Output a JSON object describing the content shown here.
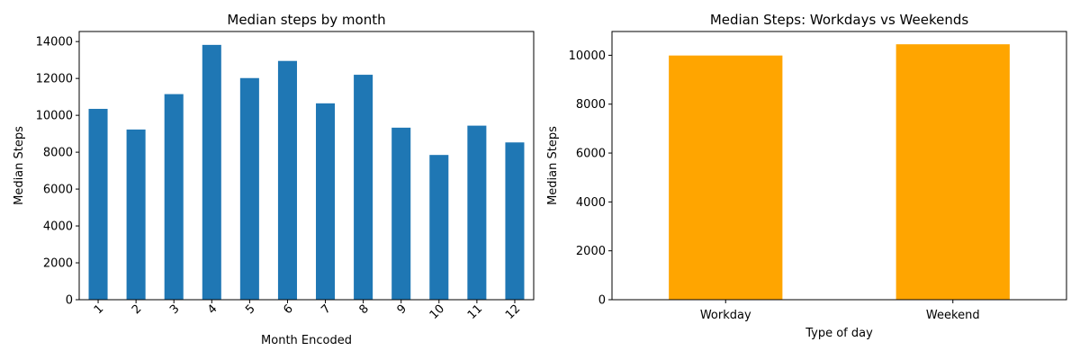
{
  "chart_data": [
    {
      "type": "bar",
      "title": "Median steps by month",
      "xlabel": "Month Encoded",
      "ylabel": "Median Steps",
      "categories": [
        "1",
        "2",
        "3",
        "4",
        "5",
        "6",
        "7",
        "8",
        "9",
        "10",
        "11",
        "12"
      ],
      "values": [
        10350,
        9230,
        11150,
        13820,
        12020,
        12950,
        10650,
        12200,
        9330,
        7850,
        9440,
        8530
      ],
      "ylim": [
        0,
        14546
      ],
      "yticks": [
        0,
        2000,
        4000,
        6000,
        8000,
        10000,
        12000,
        14000
      ],
      "ytick_labels": [
        "0",
        "2000",
        "4000",
        "6000",
        "8000",
        "10000",
        "12000",
        "14000"
      ],
      "xtick_rotation": 45,
      "color": "#1f77b4",
      "grid": false,
      "legend": "none"
    },
    {
      "type": "bar",
      "title": "Median Steps: Workdays vs Weekends",
      "xlabel": "Type of day",
      "ylabel": "Median Steps",
      "categories": [
        "Workday",
        "Weekend"
      ],
      "values": [
        9990,
        10450
      ],
      "ylim": [
        0,
        10972.5
      ],
      "yticks": [
        0,
        2000,
        4000,
        6000,
        8000,
        10000
      ],
      "ytick_labels": [
        "0",
        "2000",
        "4000",
        "6000",
        "8000",
        "10000"
      ],
      "xtick_rotation": 0,
      "color": "#ffa500",
      "grid": false,
      "legend": "none"
    }
  ]
}
